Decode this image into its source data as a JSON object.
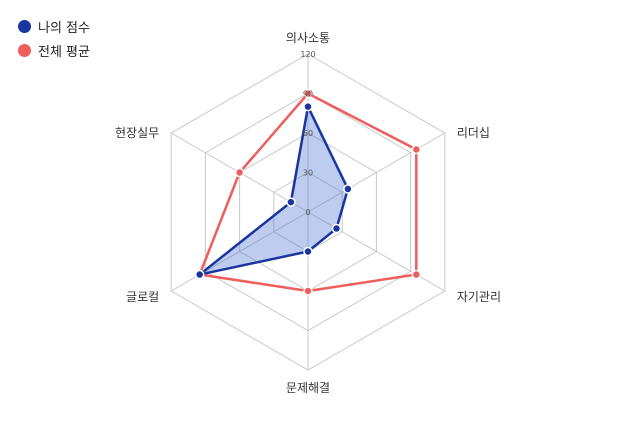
{
  "chart_data": {
    "type": "radar",
    "axes": [
      "의사소통",
      "리더십",
      "자기관리",
      "문제해결",
      "글로컬",
      "현장실무"
    ],
    "r_ticks": [
      0,
      30,
      60,
      90,
      120
    ],
    "r_range": [
      0,
      120
    ],
    "series": [
      {
        "name": "나의 점수",
        "color": "#1a35a0",
        "fill": "rgba(70,110,210,0.35)",
        "values": [
          80,
          35,
          25,
          30,
          95,
          15
        ]
      },
      {
        "name": "전체 평균",
        "color": "#ef5d5d",
        "fill": "none",
        "values": [
          90,
          95,
          95,
          60,
          95,
          60
        ]
      }
    ],
    "grid": true,
    "legend_position": "top-left"
  }
}
